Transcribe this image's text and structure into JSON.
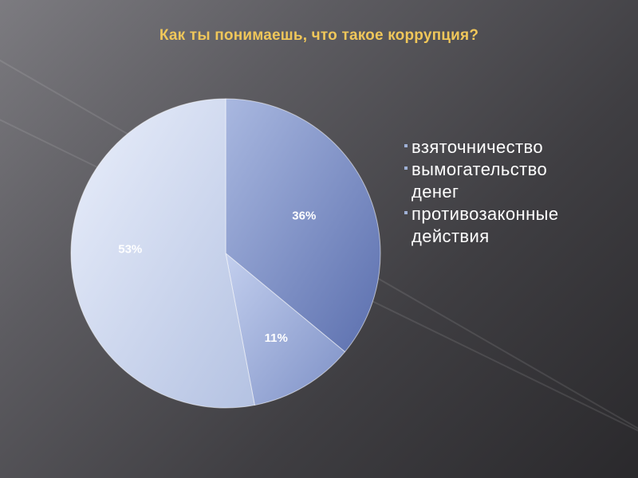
{
  "chart_data": {
    "type": "pie",
    "title": "Как ты понимаешь, что такое коррупция?",
    "categories": [
      "взяточничество",
      "вымогательство денег",
      "противозаконные действия"
    ],
    "values": [
      36,
      11,
      53
    ],
    "data_labels": [
      "36%",
      "11%",
      "53%"
    ],
    "legend": {
      "placement": "right",
      "lines": [
        [
          "взяточничество"
        ],
        [
          "вымогательство",
          "денег"
        ],
        [
          "противозаконные",
          "действия"
        ]
      ]
    },
    "colors": {
      "slice_light": [
        "#a9b8e0",
        "#c3cfee",
        "#eaeffb"
      ],
      "slice_dark": [
        "#5b6fae",
        "#7d90c6",
        "#b4c2e2"
      ],
      "label_text": "#ffffff",
      "legend_text": "#ffffff",
      "legend_marker": "#9fb1d6",
      "title_text": "#f0c75a"
    }
  }
}
